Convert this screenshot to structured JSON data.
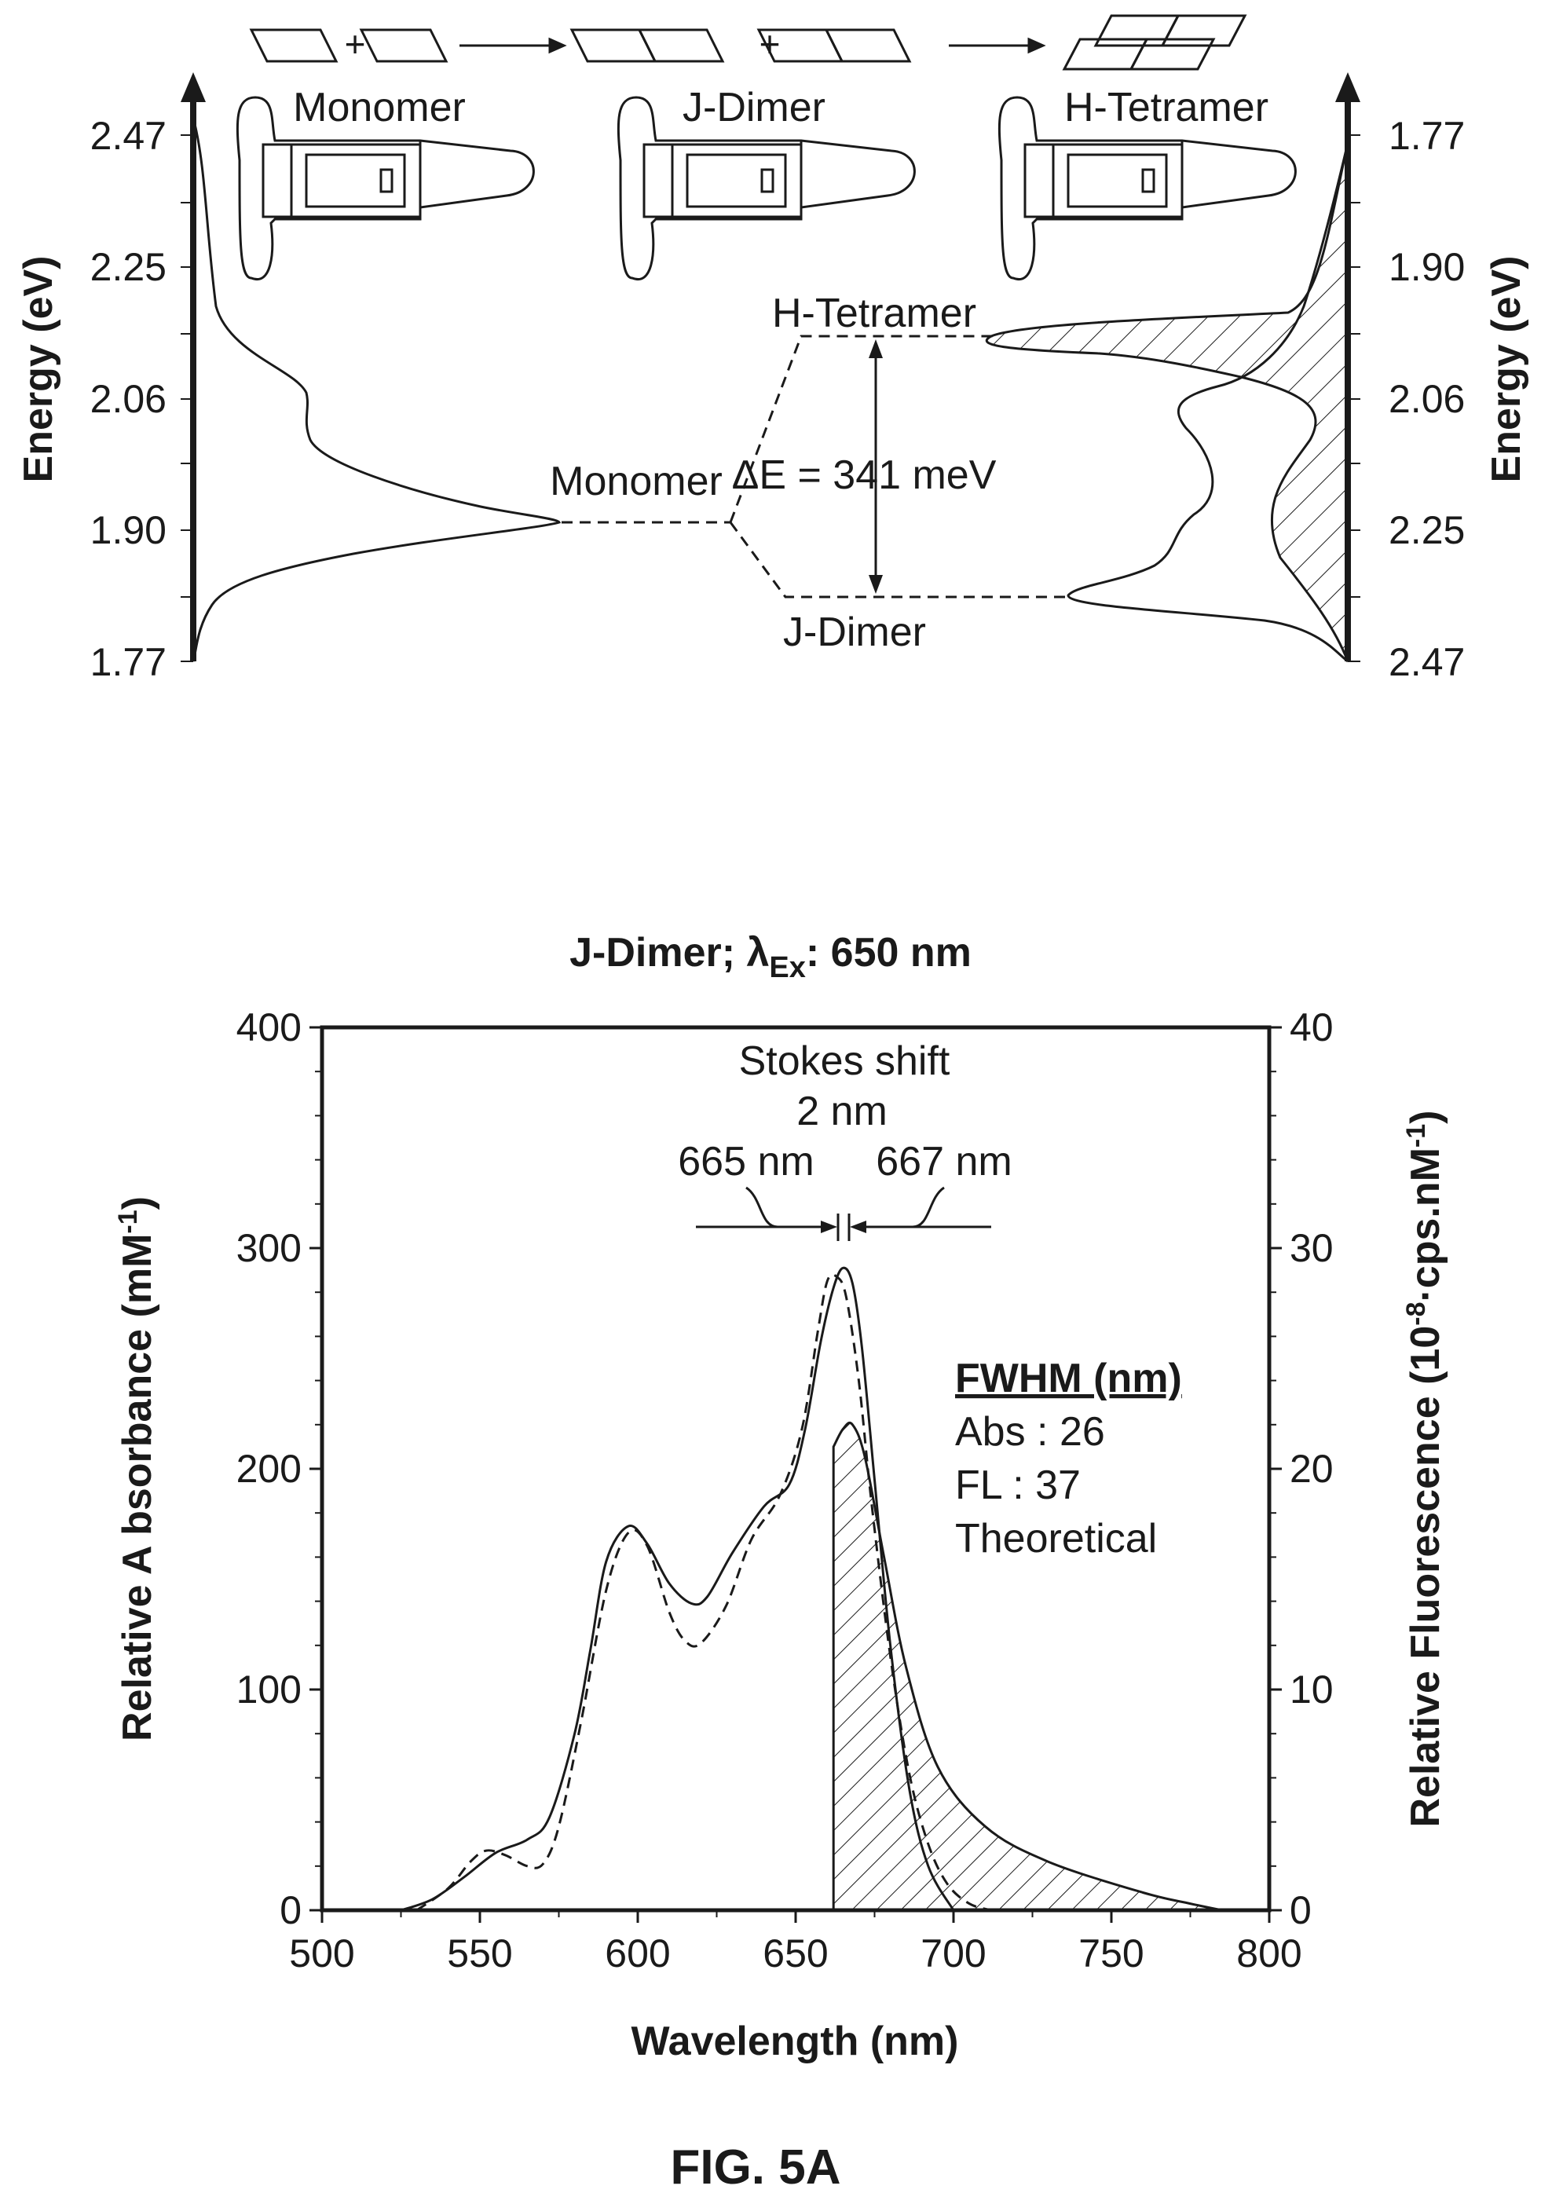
{
  "figure_label": "FIG. 5A",
  "colors": {
    "ink": "#1a1a1a",
    "background": "#ffffff"
  },
  "top_diagram": {
    "stage_labels": [
      "Monomer",
      "J-Dimer",
      "H-Tetramer"
    ],
    "plus_sign": "+",
    "level_labels": {
      "h_tetramer": "H-Tetramer",
      "monomer": "Monomer",
      "j_dimer": "J-Dimer"
    },
    "delta_e": "ΔE = 341 meV",
    "left_axis": {
      "label": "Energy (eV)",
      "ticks": [
        "2.47",
        "2.25",
        "2.06",
        "1.90",
        "1.77"
      ]
    },
    "right_axis": {
      "label": "Energy (eV)",
      "ticks": [
        "1.77",
        "1.90",
        "2.06",
        "2.25",
        "2.47"
      ]
    },
    "icons": [
      "molecule-icon",
      "square-tile-icon",
      "arrow-right-icon"
    ]
  },
  "chart_data": {
    "type": "line",
    "title": "J-Dimer; λ",
    "title_sub": "Ex",
    "title_end": ": 650 nm",
    "xlabel": "Wavelength (nm)",
    "ylabel": "Relative A bsorbance (mM",
    "ylabel_sup": "-1",
    "ylabel_end": ")",
    "y2label": "Relative Fluorescence (10",
    "y2label_sup1": "-8",
    "y2label_mid": "·cps.nM",
    "y2label_sup2": "-1",
    "y2label_end": ")",
    "xlim": [
      500,
      800
    ],
    "ylim": [
      0,
      400
    ],
    "y2lim": [
      0,
      40
    ],
    "xticks": [
      "500",
      "550",
      "600",
      "650",
      "700",
      "750",
      "800"
    ],
    "yticks": [
      "0",
      "100",
      "200",
      "300",
      "400"
    ],
    "y2ticks": [
      "0",
      "10",
      "20",
      "30",
      "40"
    ],
    "annotations": {
      "stokes_title": "Stokes shift",
      "stokes_value": "2 nm",
      "peak_abs": "665 nm",
      "peak_fl": "667 nm",
      "fwhm_title": "FWHM (nm)",
      "fwhm_abs": "Abs : 26",
      "fwhm_fl": "FL : 37",
      "fwhm_note": "Theoretical"
    },
    "series": [
      {
        "style": "solid",
        "x": [
          525,
          535,
          545,
          555,
          565,
          572,
          580,
          585,
          590,
          597,
          603,
          610,
          617,
          622,
          630,
          640,
          648,
          653,
          658,
          662,
          665,
          668,
          671,
          675,
          680,
          686,
          692,
          700
        ],
        "y": [
          0,
          5,
          15,
          26,
          32,
          42,
          80,
          118,
          158,
          174,
          166,
          148,
          139,
          142,
          162,
          183,
          193,
          218,
          258,
          282,
          291,
          284,
          255,
          195,
          120,
          55,
          20,
          0
        ]
      },
      {
        "style": "dashed",
        "x": [
          530,
          540,
          547,
          552,
          558,
          565,
          570,
          575,
          582,
          590,
          597,
          603,
          610,
          615,
          620,
          628,
          636,
          645,
          652,
          657,
          660,
          663,
          666,
          670,
          674,
          680,
          686,
          692,
          698,
          705,
          712
        ],
        "y": [
          0,
          10,
          22,
          27,
          25,
          20,
          21,
          38,
          85,
          145,
          171,
          165,
          135,
          122,
          121,
          138,
          168,
          188,
          218,
          262,
          285,
          287,
          278,
          240,
          185,
          115,
          62,
          30,
          12,
          3,
          0
        ]
      },
      {
        "style": "filled-hatched",
        "y_axis": "right",
        "x": [
          662,
          665,
          668,
          672,
          678,
          685,
          695,
          710,
          730,
          760,
          775,
          785
        ],
        "y": [
          21.0,
          21.8,
          22.0,
          20.5,
          16.0,
          11.0,
          6.5,
          3.8,
          2.2,
          0.8,
          0.3,
          0
        ]
      }
    ]
  }
}
